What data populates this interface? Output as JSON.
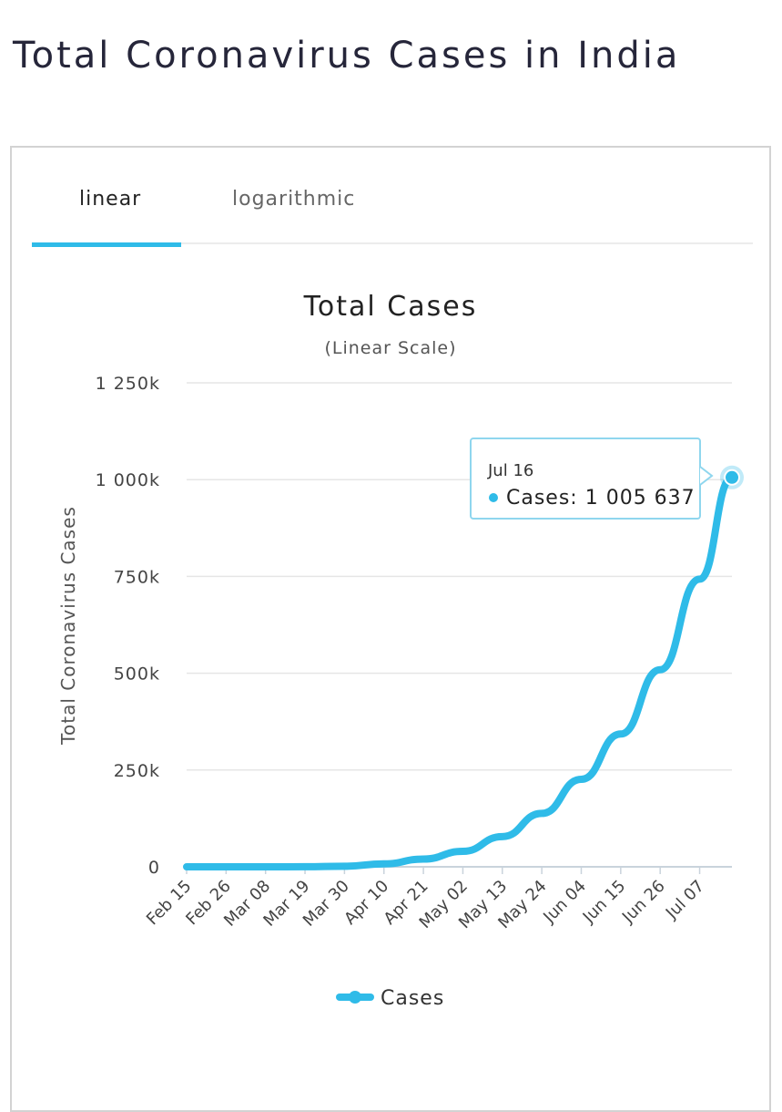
{
  "page": {
    "title": "Total Coronavirus Cases in India"
  },
  "tabs": [
    {
      "label": "linear",
      "active": true
    },
    {
      "label": "logarithmic",
      "active": false
    }
  ],
  "colors": {
    "accent": "#2fbbe8",
    "grid": "#e6e6e6",
    "text": "#333333"
  },
  "chart_data": {
    "type": "line",
    "title": "Total Cases",
    "subtitle": "(Linear Scale)",
    "ylabel": "Total Coronavirus Cases",
    "xlabel": "",
    "ylim": [
      0,
      1250000
    ],
    "yticks": [
      {
        "value": 0,
        "label": "0"
      },
      {
        "value": 250000,
        "label": "250k"
      },
      {
        "value": 500000,
        "label": "500k"
      },
      {
        "value": 750000,
        "label": "750k"
      },
      {
        "value": 1000000,
        "label": "1 000k"
      },
      {
        "value": 1250000,
        "label": "1 250k"
      }
    ],
    "xticks": [
      "Feb 15",
      "Feb 26",
      "Mar 08",
      "Mar 19",
      "Mar 30",
      "Apr 10",
      "Apr 21",
      "May 02",
      "May 13",
      "May 24",
      "Jun 04",
      "Jun 15",
      "Jun 26",
      "Jul 07"
    ],
    "grid": true,
    "legend": "bottom-center",
    "series": [
      {
        "name": "Cases",
        "color": "#2fbbe8",
        "points": [
          [
            "Feb 15",
            3
          ],
          [
            "Feb 26",
            3
          ],
          [
            "Mar 08",
            40
          ],
          [
            "Mar 19",
            200
          ],
          [
            "Mar 30",
            1400
          ],
          [
            "Apr 10",
            7600
          ],
          [
            "Apr 21",
            20000
          ],
          [
            "May 02",
            40000
          ],
          [
            "May 13",
            78000
          ],
          [
            "May 24",
            138000
          ],
          [
            "Jun 04",
            226000
          ],
          [
            "Jun 15",
            343000
          ],
          [
            "Jun 26",
            509000
          ],
          [
            "Jul 07",
            743000
          ],
          [
            "Jul 16",
            1005637
          ]
        ]
      }
    ],
    "tooltip": {
      "date": "Jul 16",
      "label": "Cases: 1 005 637"
    }
  }
}
